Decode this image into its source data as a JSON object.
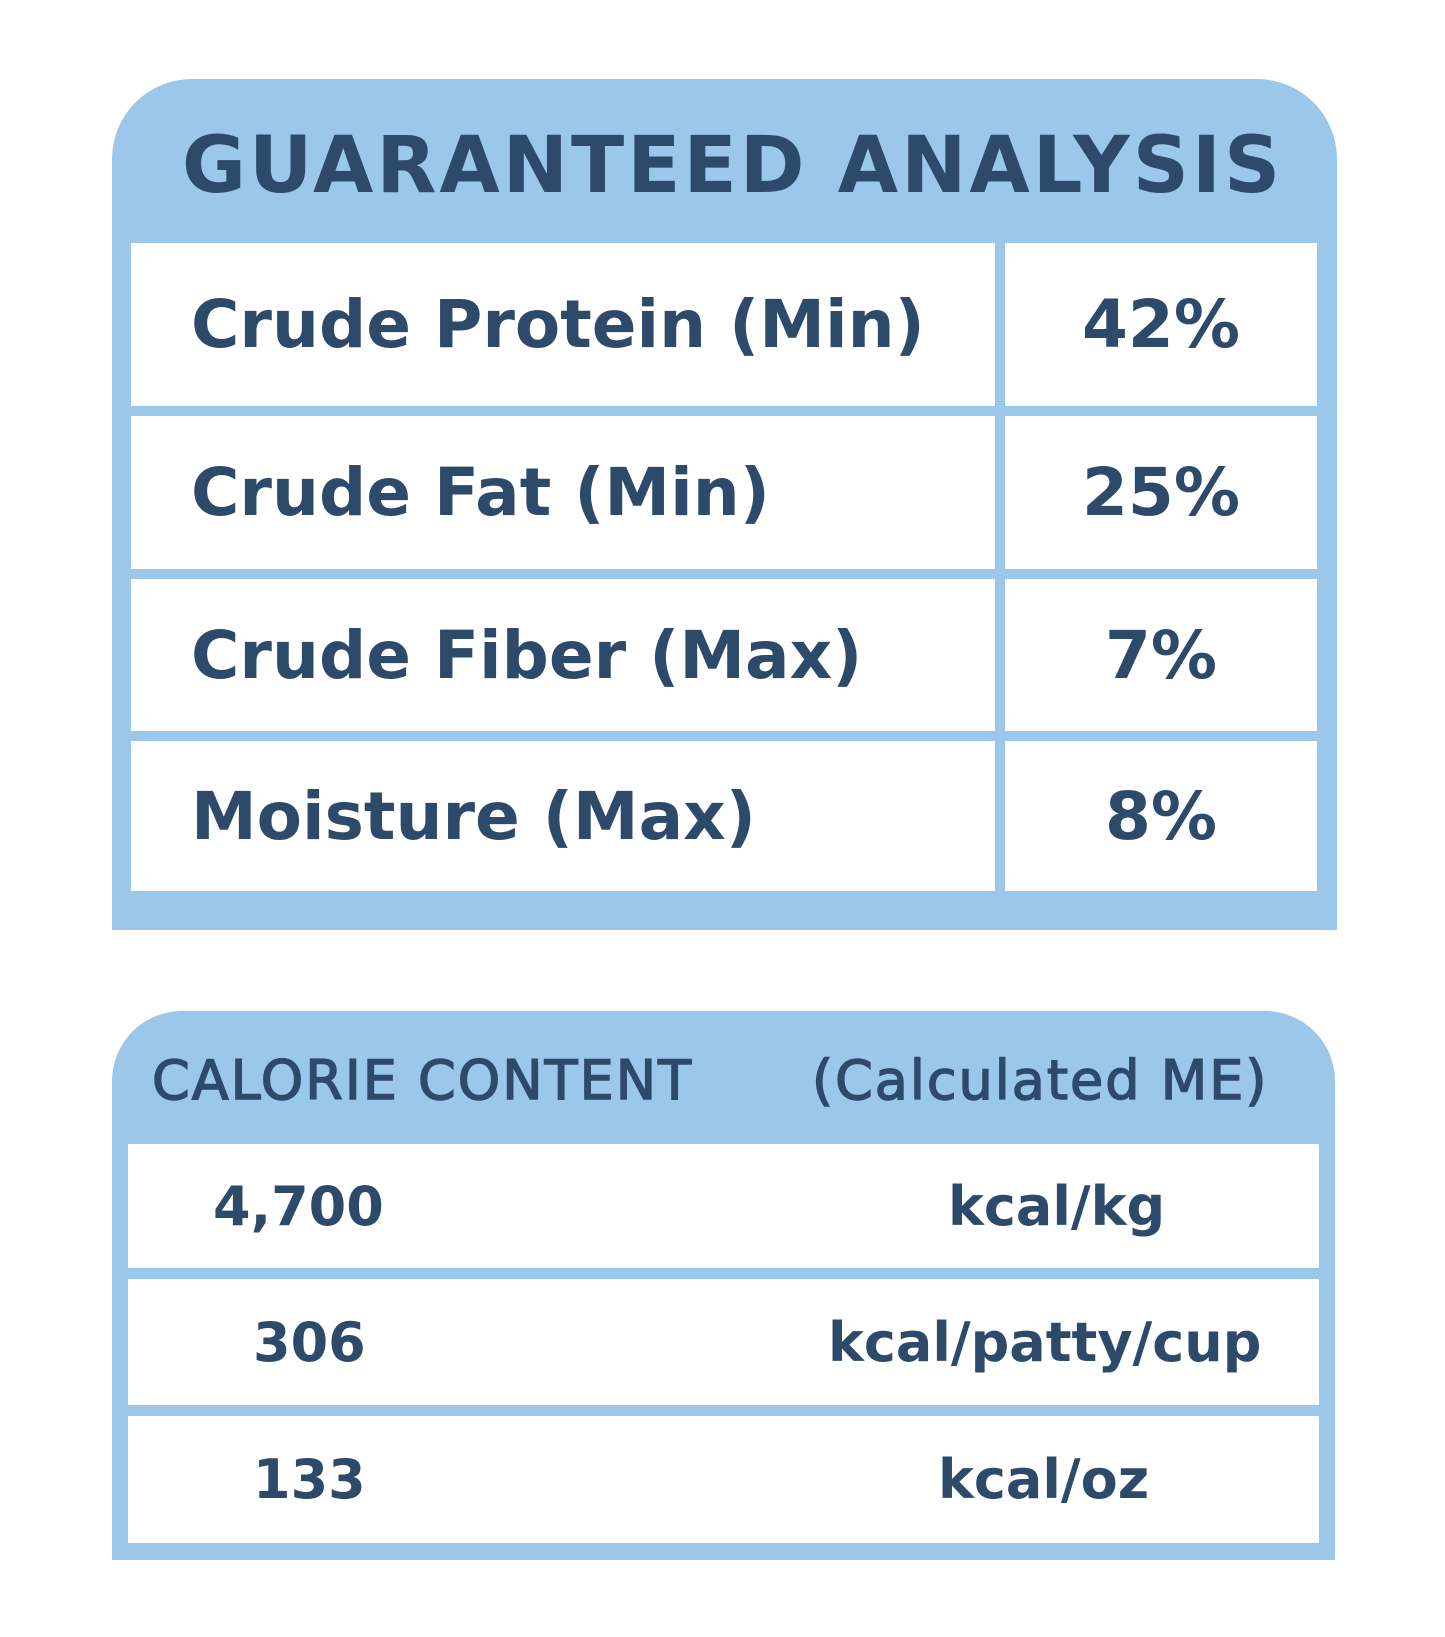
{
  "guaranteed_analysis": {
    "title": "GUARANTEED ANALYSIS",
    "rows": [
      {
        "label": "Crude Protein (Min)",
        "value": "42%"
      },
      {
        "label": "Crude Fat (Min)",
        "value": "25%"
      },
      {
        "label": "Crude Fiber (Max)",
        "value": "7%"
      },
      {
        "label": "Moisture (Max)",
        "value": "8%"
      }
    ]
  },
  "calorie_content": {
    "title": "CALORIE CONTENT",
    "subtitle": "(Calculated ME)",
    "rows": [
      {
        "value": "4,700",
        "unit": "kcal/kg"
      },
      {
        "value": "306",
        "unit": "kcal/patty/cup"
      },
      {
        "value": "133",
        "unit": "kcal/oz"
      }
    ]
  },
  "colors": {
    "panel": "#9ac7ea",
    "text": "#2d4a6b"
  }
}
